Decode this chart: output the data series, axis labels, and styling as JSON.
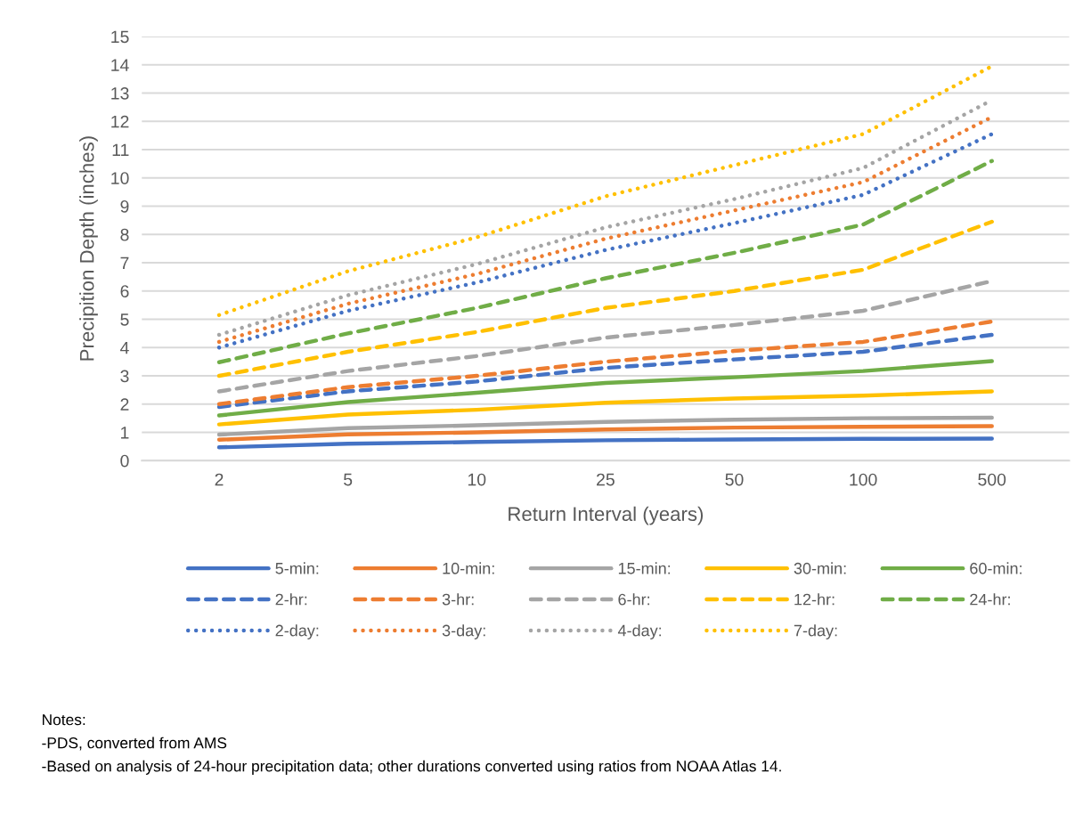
{
  "chart_data": {
    "type": "line",
    "xlabel": "Return Interval (years)",
    "ylabel": "Precipition Depth (inches)",
    "categories": [
      "2",
      "5",
      "10",
      "25",
      "50",
      "100",
      "500"
    ],
    "ylim": [
      0,
      15
    ],
    "yticks": [
      0,
      1,
      2,
      3,
      4,
      5,
      6,
      7,
      8,
      9,
      10,
      11,
      12,
      13,
      14,
      15
    ],
    "grid": "y",
    "legend": "bottom",
    "series": [
      {
        "name": "5-min:",
        "color": "#4472c4",
        "line_style": "solid",
        "values": [
          0.47,
          0.6,
          0.66,
          0.72,
          0.75,
          0.77,
          0.78
        ]
      },
      {
        "name": "10-min:",
        "color": "#ed7d31",
        "line_style": "solid",
        "values": [
          0.74,
          0.93,
          1.0,
          1.1,
          1.17,
          1.2,
          1.22
        ]
      },
      {
        "name": "15-min:",
        "color": "#a5a5a5",
        "line_style": "solid",
        "values": [
          0.92,
          1.15,
          1.25,
          1.37,
          1.45,
          1.5,
          1.52
        ]
      },
      {
        "name": "30-min:",
        "color": "#ffc000",
        "line_style": "solid",
        "values": [
          1.28,
          1.63,
          1.8,
          2.05,
          2.2,
          2.3,
          2.45
        ]
      },
      {
        "name": "60-min:",
        "color": "#70ad47",
        "line_style": "solid",
        "values": [
          1.6,
          2.07,
          2.4,
          2.75,
          2.95,
          3.17,
          3.52
        ]
      },
      {
        "name": "2-hr:",
        "color": "#4472c4",
        "line_style": "dashed",
        "values": [
          1.9,
          2.45,
          2.8,
          3.28,
          3.58,
          3.85,
          4.45
        ]
      },
      {
        "name": "3-hr:",
        "color": "#ed7d31",
        "line_style": "dashed",
        "values": [
          2.0,
          2.6,
          3.0,
          3.5,
          3.88,
          4.2,
          4.92
        ]
      },
      {
        "name": "6-hr:",
        "color": "#a5a5a5",
        "line_style": "dashed",
        "values": [
          2.45,
          3.17,
          3.7,
          4.35,
          4.8,
          5.3,
          6.35
        ]
      },
      {
        "name": "12-hr:",
        "color": "#ffc000",
        "line_style": "dashed",
        "values": [
          3.0,
          3.85,
          4.55,
          5.4,
          6.0,
          6.75,
          8.45
        ]
      },
      {
        "name": "24-hr:",
        "color": "#70ad47",
        "line_style": "dashed",
        "values": [
          3.48,
          4.5,
          5.4,
          6.45,
          7.35,
          8.35,
          10.6
        ]
      },
      {
        "name": "2-day:",
        "color": "#4472c4",
        "line_style": "dotted",
        "values": [
          4.0,
          5.3,
          6.3,
          7.45,
          8.4,
          9.4,
          11.55
        ]
      },
      {
        "name": "3-day:",
        "color": "#ed7d31",
        "line_style": "dotted",
        "values": [
          4.2,
          5.55,
          6.6,
          7.85,
          8.85,
          9.85,
          12.15
        ]
      },
      {
        "name": "4-day:",
        "color": "#a5a5a5",
        "line_style": "dotted",
        "values": [
          4.45,
          5.85,
          6.95,
          8.25,
          9.25,
          10.35,
          12.75
        ]
      },
      {
        "name": "7-day:",
        "color": "#ffc000",
        "line_style": "dotted",
        "values": [
          5.15,
          6.7,
          7.9,
          9.35,
          10.45,
          11.55,
          13.95
        ]
      }
    ],
    "annotations": [
      "Notes:",
      "-PDS, converted from AMS",
      "-Based on analysis of 24-hour precipitation data; other durations converted using ratios from NOAA Atlas 14."
    ]
  }
}
